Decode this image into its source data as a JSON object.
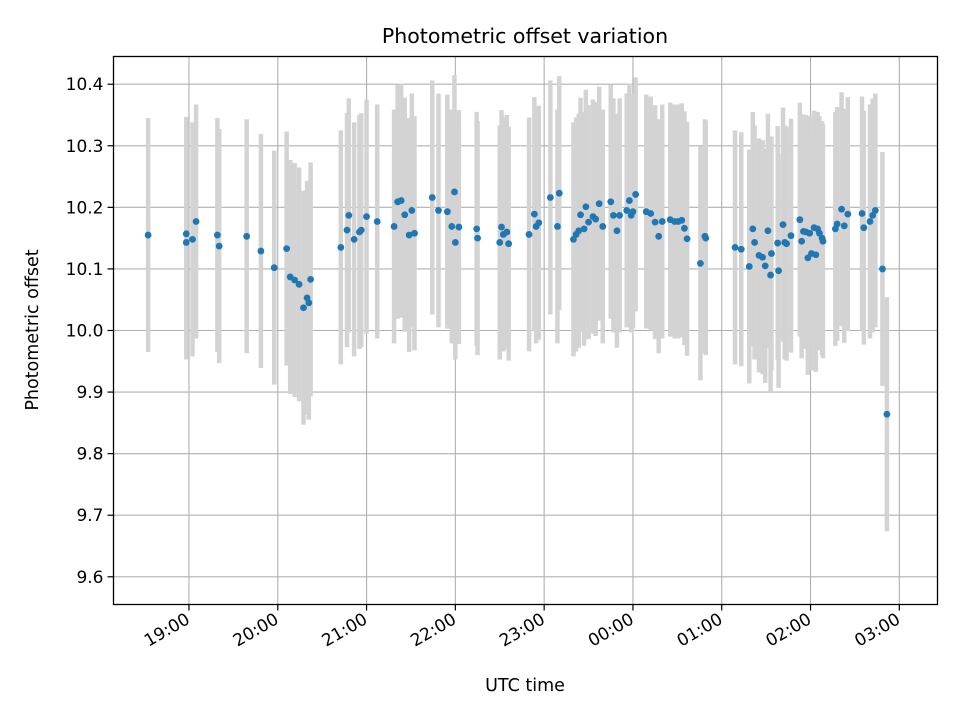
{
  "chart_data": {
    "type": "scatter",
    "title": "Photometric offset variation",
    "xlabel": "UTC time",
    "ylabel": "Photometric offset",
    "x_axis": "time",
    "x_unit": "hours UTC (values >= 24 are after midnight)",
    "xlim": [
      18.15,
      27.43
    ],
    "ylim": [
      9.555,
      10.445
    ],
    "x_ticks": [
      {
        "value": 19,
        "label": "19:00"
      },
      {
        "value": 20,
        "label": "20:00"
      },
      {
        "value": 21,
        "label": "21:00"
      },
      {
        "value": 22,
        "label": "22:00"
      },
      {
        "value": 23,
        "label": "23:00"
      },
      {
        "value": 24,
        "label": "00:00"
      },
      {
        "value": 25,
        "label": "01:00"
      },
      {
        "value": 26,
        "label": "02:00"
      },
      {
        "value": 27,
        "label": "03:00"
      }
    ],
    "y_ticks": [
      {
        "value": 9.6,
        "label": "9.6"
      },
      {
        "value": 9.7,
        "label": "9.7"
      },
      {
        "value": 9.8,
        "label": "9.8"
      },
      {
        "value": 9.9,
        "label": "9.9"
      },
      {
        "value": 10.0,
        "label": "10.0"
      },
      {
        "value": 10.1,
        "label": "10.1"
      },
      {
        "value": 10.2,
        "label": "10.2"
      },
      {
        "value": 10.3,
        "label": "10.3"
      },
      {
        "value": 10.4,
        "label": "10.4"
      }
    ],
    "grid": true,
    "legend": "none",
    "marker_color": "#1f77b4",
    "errorbar_color": "#d3d3d3",
    "errorbar_half_width": 0.19,
    "points": [
      [
        18.54,
        10.155
      ],
      [
        18.97,
        10.157
      ],
      [
        18.97,
        10.143
      ],
      [
        19.04,
        10.148
      ],
      [
        19.08,
        10.177
      ],
      [
        19.32,
        10.155
      ],
      [
        19.34,
        10.137
      ],
      [
        19.65,
        10.153
      ],
      [
        19.81,
        10.129
      ],
      [
        19.96,
        10.102
      ],
      [
        20.1,
        10.133
      ],
      [
        20.14,
        10.087
      ],
      [
        20.19,
        10.082
      ],
      [
        20.24,
        10.075
      ],
      [
        20.29,
        10.037
      ],
      [
        20.33,
        10.053
      ],
      [
        20.35,
        10.045
      ],
      [
        20.37,
        10.083
      ],
      [
        20.71,
        10.135
      ],
      [
        20.78,
        10.163
      ],
      [
        20.8,
        10.187
      ],
      [
        20.86,
        10.148
      ],
      [
        20.92,
        10.16
      ],
      [
        20.94,
        10.163
      ],
      [
        21.0,
        10.185
      ],
      [
        21.12,
        10.177
      ],
      [
        21.31,
        10.169
      ],
      [
        21.35,
        10.209
      ],
      [
        21.39,
        10.211
      ],
      [
        21.43,
        10.188
      ],
      [
        21.48,
        10.155
      ],
      [
        21.51,
        10.195
      ],
      [
        21.54,
        10.158
      ],
      [
        21.74,
        10.216
      ],
      [
        21.81,
        10.195
      ],
      [
        21.91,
        10.193
      ],
      [
        21.96,
        10.169
      ],
      [
        21.99,
        10.225
      ],
      [
        22.0,
        10.143
      ],
      [
        22.04,
        10.168
      ],
      [
        22.24,
        10.165
      ],
      [
        22.25,
        10.15
      ],
      [
        22.5,
        10.143
      ],
      [
        22.52,
        10.168
      ],
      [
        22.54,
        10.156
      ],
      [
        22.58,
        10.16
      ],
      [
        22.6,
        10.141
      ],
      [
        22.83,
        10.156
      ],
      [
        22.89,
        10.189
      ],
      [
        22.91,
        10.169
      ],
      [
        22.94,
        10.175
      ],
      [
        23.07,
        10.216
      ],
      [
        23.15,
        10.169
      ],
      [
        23.17,
        10.223
      ],
      [
        23.33,
        10.148
      ],
      [
        23.36,
        10.156
      ],
      [
        23.39,
        10.162
      ],
      [
        23.41,
        10.188
      ],
      [
        23.45,
        10.165
      ],
      [
        23.47,
        10.201
      ],
      [
        23.5,
        10.176
      ],
      [
        23.55,
        10.185
      ],
      [
        23.58,
        10.181
      ],
      [
        23.62,
        10.206
      ],
      [
        23.66,
        10.169
      ],
      [
        23.75,
        10.209
      ],
      [
        23.78,
        10.187
      ],
      [
        23.82,
        10.162
      ],
      [
        23.85,
        10.187
      ],
      [
        23.93,
        10.195
      ],
      [
        23.96,
        10.211
      ],
      [
        23.98,
        10.187
      ],
      [
        24.0,
        10.193
      ],
      [
        24.03,
        10.221
      ],
      [
        24.15,
        10.193
      ],
      [
        24.2,
        10.19
      ],
      [
        24.25,
        10.176
      ],
      [
        24.29,
        10.153
      ],
      [
        24.33,
        10.177
      ],
      [
        24.42,
        10.18
      ],
      [
        24.47,
        10.177
      ],
      [
        24.51,
        10.177
      ],
      [
        24.55,
        10.179
      ],
      [
        24.58,
        10.166
      ],
      [
        24.61,
        10.149
      ],
      [
        24.76,
        10.109
      ],
      [
        24.81,
        10.153
      ],
      [
        24.82,
        10.15
      ],
      [
        25.15,
        10.135
      ],
      [
        25.22,
        10.132
      ],
      [
        25.31,
        10.104
      ],
      [
        25.35,
        10.165
      ],
      [
        25.37,
        10.143
      ],
      [
        25.42,
        10.122
      ],
      [
        25.46,
        10.119
      ],
      [
        25.49,
        10.105
      ],
      [
        25.52,
        10.162
      ],
      [
        25.55,
        10.09
      ],
      [
        25.56,
        10.125
      ],
      [
        25.63,
        10.142
      ],
      [
        25.64,
        10.097
      ],
      [
        25.69,
        10.172
      ],
      [
        25.71,
        10.143
      ],
      [
        25.73,
        10.141
      ],
      [
        25.78,
        10.154
      ],
      [
        25.88,
        10.18
      ],
      [
        25.9,
        10.145
      ],
      [
        25.92,
        10.161
      ],
      [
        25.95,
        10.16
      ],
      [
        25.97,
        10.118
      ],
      [
        25.99,
        10.158
      ],
      [
        26.01,
        10.125
      ],
      [
        26.04,
        10.167
      ],
      [
        26.06,
        10.123
      ],
      [
        26.08,
        10.165
      ],
      [
        26.1,
        10.158
      ],
      [
        26.13,
        10.15
      ],
      [
        26.14,
        10.145
      ],
      [
        26.28,
        10.165
      ],
      [
        26.3,
        10.173
      ],
      [
        26.35,
        10.197
      ],
      [
        26.38,
        10.17
      ],
      [
        26.42,
        10.189
      ],
      [
        26.58,
        10.19
      ],
      [
        26.6,
        10.167
      ],
      [
        26.67,
        10.177
      ],
      [
        26.7,
        10.187
      ],
      [
        26.73,
        10.195
      ],
      [
        26.81,
        10.1
      ],
      [
        26.86,
        9.864
      ]
    ]
  }
}
